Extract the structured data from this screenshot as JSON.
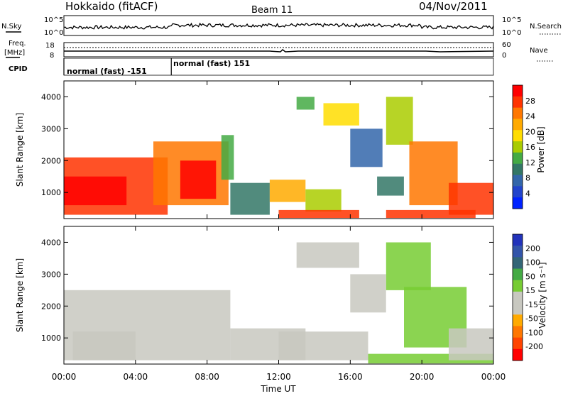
{
  "header": {
    "station": "Hokkaido (fitACF)",
    "beam": "Beam 11",
    "date": "04/Nov/2011"
  },
  "top_panels": {
    "nsky_label": "N.Sky",
    "nsky_ticks": [
      "10^5",
      "10^0"
    ],
    "nsearch_label": "N.Search",
    "nsearch_ticks": [
      "10^5",
      "10^0"
    ],
    "freq_label": "Freq.",
    "freq_unit": "[MHz]",
    "freq_ticks": [
      "18",
      "8"
    ],
    "nave_label": "Nave",
    "nave_ticks": [
      "60",
      "0"
    ],
    "cpid_label": "CPID",
    "cpid_segments": [
      {
        "label": "normal (fast) -151",
        "start_hour": 0,
        "end_hour": 6
      },
      {
        "label": "normal (fast) 151",
        "start_hour": 6,
        "end_hour": 24
      }
    ]
  },
  "power_colorbar": {
    "label": "Power [dB]",
    "ticks": [
      "28",
      "24",
      "20",
      "16",
      "12",
      "8",
      "4"
    ],
    "colors": [
      "#ff0000",
      "#ff3300",
      "#ff7700",
      "#ffaa00",
      "#ffdd00",
      "#aacc00",
      "#44aa44",
      "#337766",
      "#3366aa",
      "#2244cc",
      "#0022ff"
    ]
  },
  "velocity_colorbar": {
    "label": "Velocity [m s⁻¹]",
    "ticks": [
      "200",
      "100",
      "50",
      "15",
      "-15",
      "-50",
      "-100",
      "-200"
    ],
    "colors": [
      "#2233bb",
      "#3355aa",
      "#336677",
      "#44aa44",
      "#77cc33",
      "#c8c8c0",
      "#c8c8c0",
      "#ffaa00",
      "#ff7700",
      "#ff4400",
      "#ff0000"
    ]
  },
  "chart_data": [
    {
      "type": "heatmap",
      "title": "Power",
      "xlabel": "Time UT",
      "ylabel": "Slant Range [km]",
      "x_ticks": [
        "00:00",
        "04:00",
        "08:00",
        "12:00",
        "16:00",
        "20:00",
        "00:00"
      ],
      "y_ticks": [
        1000,
        2000,
        3000,
        4000
      ],
      "xlim_hours": [
        0,
        24
      ],
      "ylim_km": [
        180,
        4500
      ],
      "colorbar_range_db": [
        0,
        30
      ],
      "regions": [
        {
          "t0": 0.0,
          "t1": 5.8,
          "r0": 300,
          "r1": 2100,
          "value": 26
        },
        {
          "t0": 0.0,
          "t1": 3.5,
          "r0": 600,
          "r1": 1500,
          "value": 29
        },
        {
          "t0": 5.0,
          "t1": 9.2,
          "r0": 600,
          "r1": 2600,
          "value": 24
        },
        {
          "t0": 6.5,
          "t1": 8.5,
          "r0": 800,
          "r1": 2000,
          "value": 28
        },
        {
          "t0": 8.8,
          "t1": 9.5,
          "r0": 1400,
          "r1": 2800,
          "value": 12
        },
        {
          "t0": 9.3,
          "t1": 11.5,
          "r0": 300,
          "r1": 1300,
          "value": 9
        },
        {
          "t0": 11.5,
          "t1": 13.5,
          "r0": 700,
          "r1": 1400,
          "value": 20
        },
        {
          "t0": 13.5,
          "t1": 15.5,
          "r0": 400,
          "r1": 1100,
          "value": 16
        },
        {
          "t0": 12.0,
          "t1": 16.5,
          "r0": 200,
          "r1": 450,
          "value": 26
        },
        {
          "t0": 14.5,
          "t1": 16.5,
          "r0": 3100,
          "r1": 3800,
          "value": 19
        },
        {
          "t0": 13.0,
          "t1": 14.0,
          "r0": 3600,
          "r1": 4000,
          "value": 12
        },
        {
          "t0": 16.0,
          "t1": 17.8,
          "r0": 1800,
          "r1": 3000,
          "value": 6
        },
        {
          "t0": 17.5,
          "t1": 19.0,
          "r0": 900,
          "r1": 1500,
          "value": 10
        },
        {
          "t0": 18.0,
          "t1": 19.5,
          "r0": 2500,
          "r1": 4000,
          "value": 14
        },
        {
          "t0": 19.3,
          "t1": 22.0,
          "r0": 600,
          "r1": 2600,
          "value": 22
        },
        {
          "t0": 21.5,
          "t1": 24.0,
          "r0": 300,
          "r1": 1300,
          "value": 26
        },
        {
          "t0": 18.0,
          "t1": 23.0,
          "r0": 200,
          "r1": 450,
          "value": 27
        }
      ]
    },
    {
      "type": "heatmap",
      "title": "Velocity",
      "xlabel": "Time UT",
      "ylabel": "Slant Range [km]",
      "x_ticks": [
        "00:00",
        "04:00",
        "08:00",
        "12:00",
        "16:00",
        "20:00",
        "00:00"
      ],
      "y_ticks": [
        1000,
        2000,
        3000,
        4000
      ],
      "xlim_hours": [
        0,
        24
      ],
      "ylim_km": [
        180,
        4500
      ],
      "colorbar_range_ms": [
        -250,
        250
      ],
      "regions": [
        {
          "t0": 0.0,
          "t1": 9.3,
          "r0": 300,
          "r1": 2500,
          "value": 0
        },
        {
          "t0": 9.3,
          "t1": 13.5,
          "r0": 300,
          "r1": 1300,
          "value": -5
        },
        {
          "t0": 12.0,
          "t1": 17.0,
          "r0": 300,
          "r1": 1200,
          "value": 5
        },
        {
          "t0": 13.0,
          "t1": 16.5,
          "r0": 3200,
          "r1": 4000,
          "value": 0
        },
        {
          "t0": 16.0,
          "t1": 18.0,
          "r0": 1800,
          "r1": 3000,
          "value": 0
        },
        {
          "t0": 18.0,
          "t1": 20.5,
          "r0": 2500,
          "r1": 4000,
          "value": 40
        },
        {
          "t0": 19.0,
          "t1": 22.5,
          "r0": 700,
          "r1": 2600,
          "value": 30
        },
        {
          "t0": 17.0,
          "t1": 24.0,
          "r0": 200,
          "r1": 500,
          "value": 30
        },
        {
          "t0": 21.5,
          "t1": 24.0,
          "r0": 300,
          "r1": 1300,
          "value": -2
        },
        {
          "t0": 0.5,
          "t1": 4.0,
          "r0": 300,
          "r1": 1200,
          "value": -40
        }
      ]
    }
  ]
}
